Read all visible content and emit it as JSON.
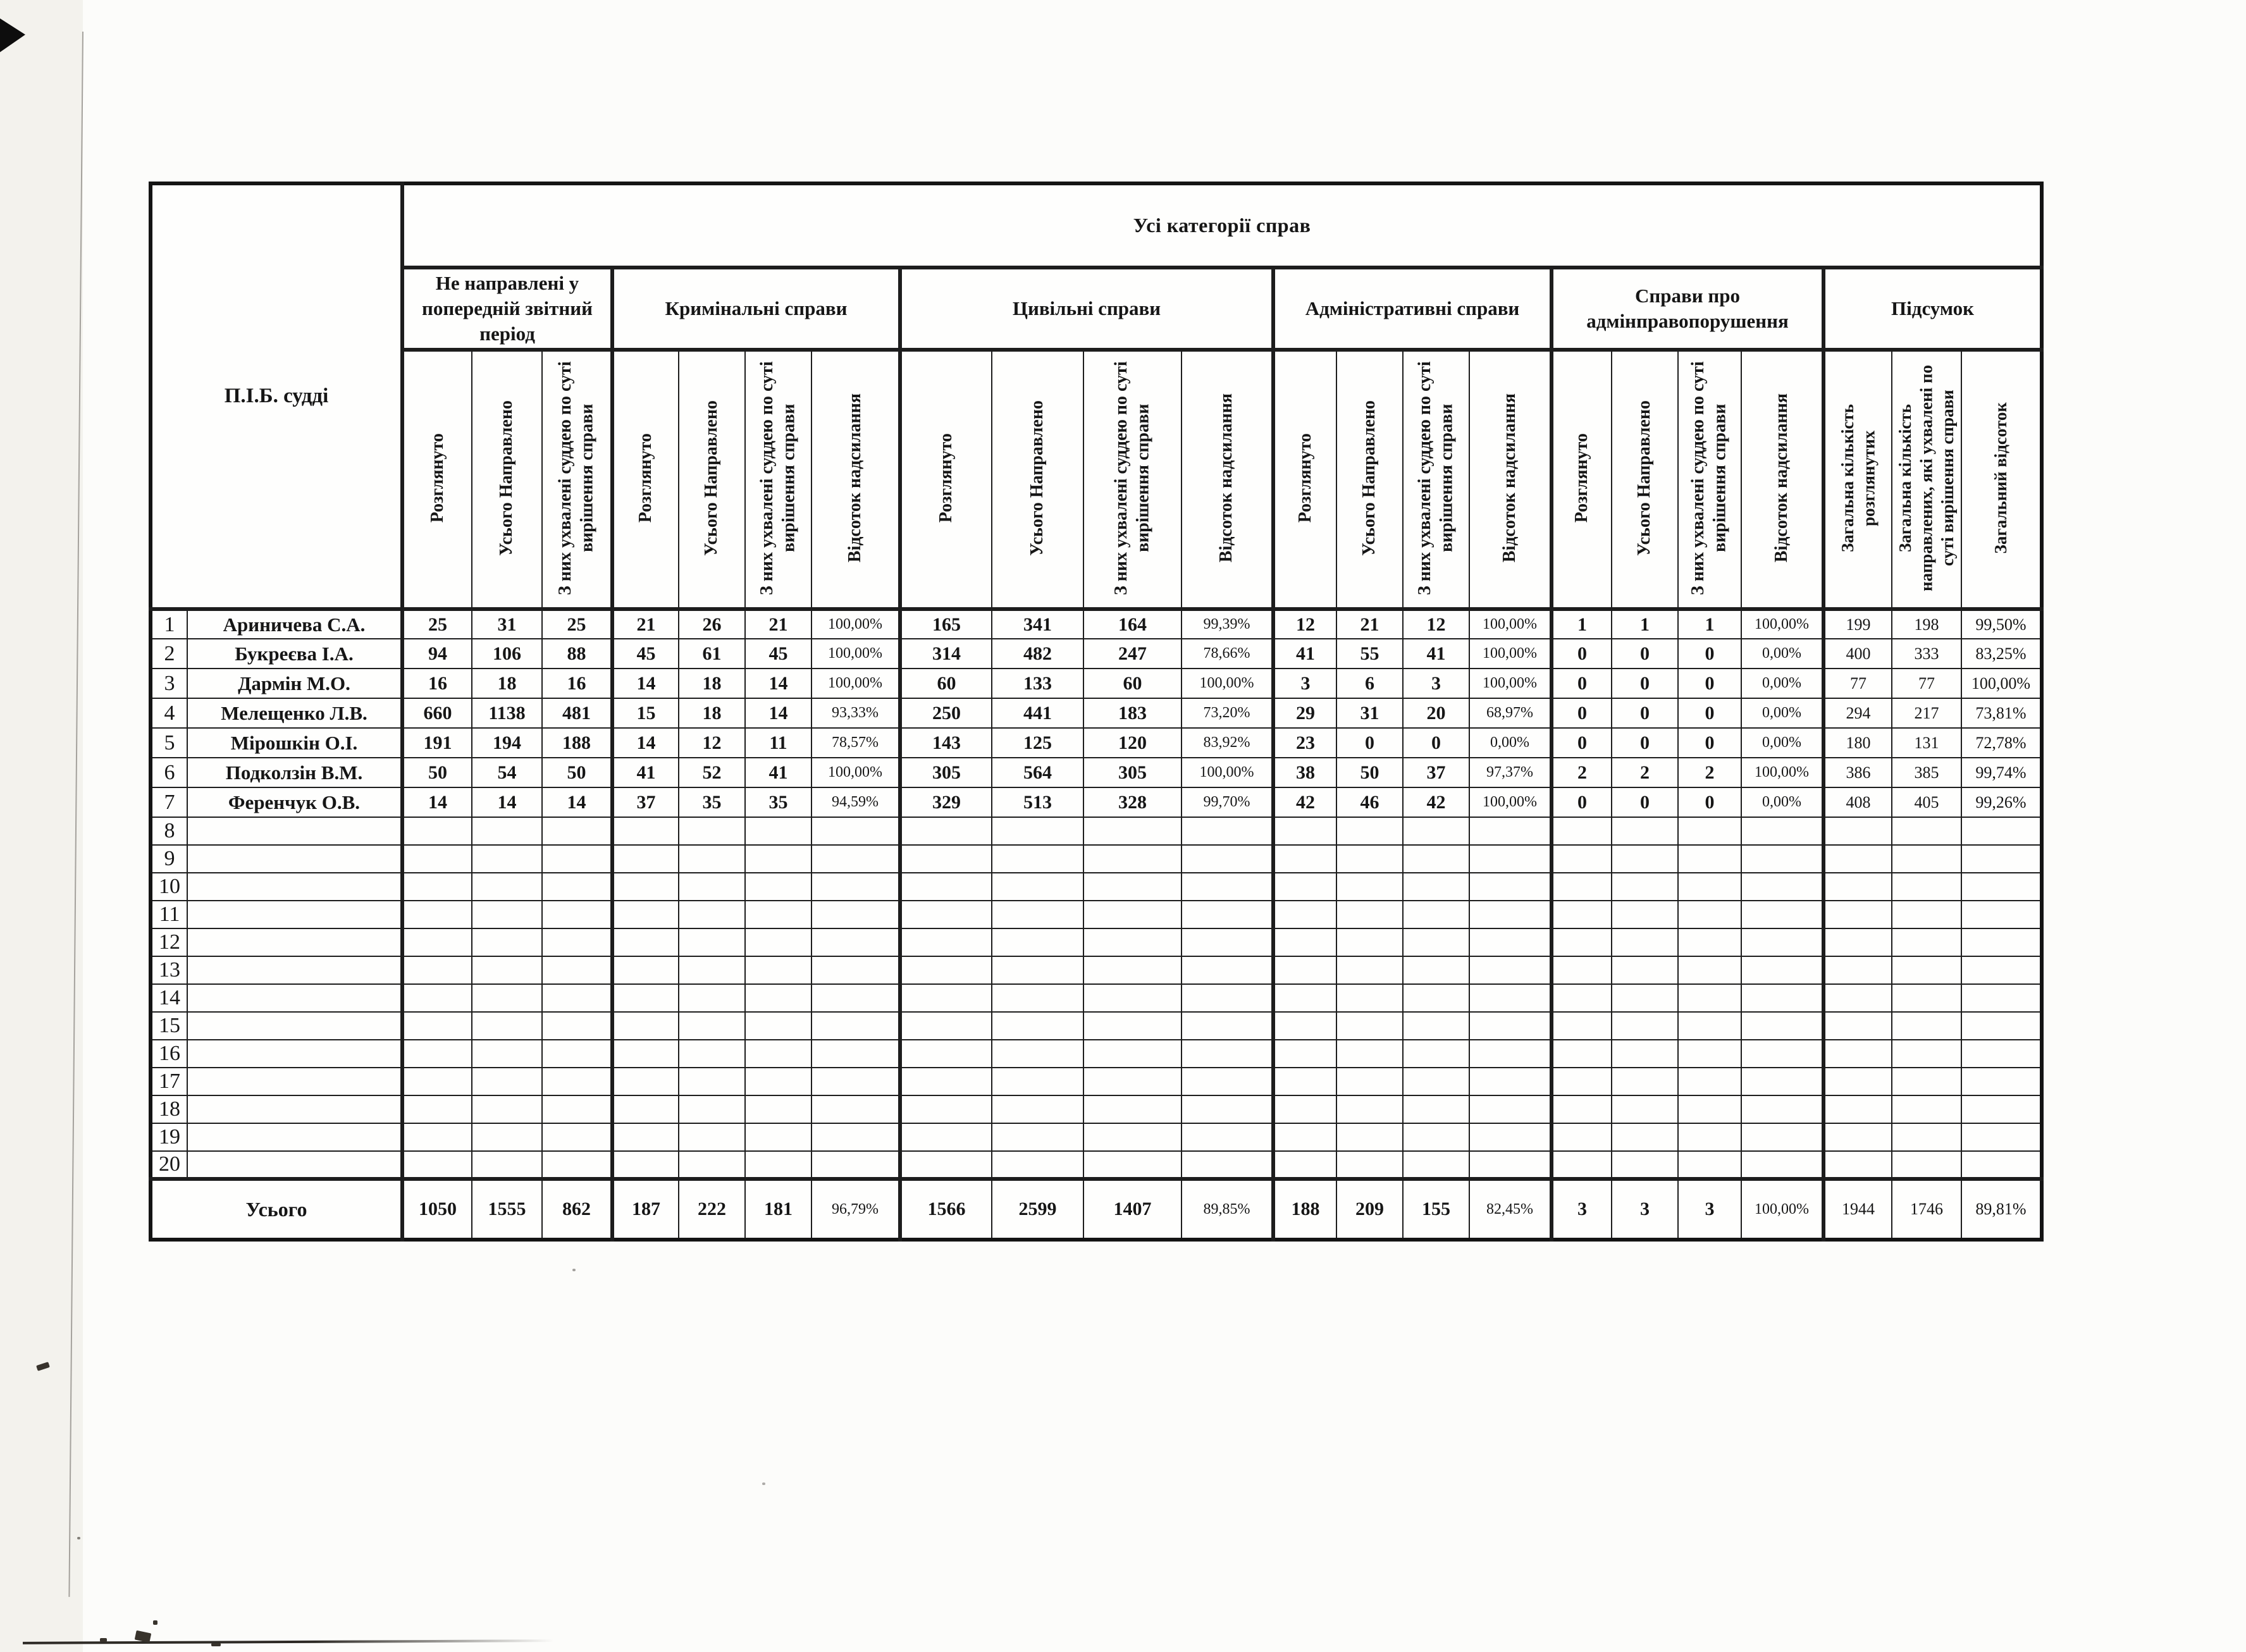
{
  "document": {
    "corner_header": "П.І.Б. судді",
    "span_header": "Усі категорії справ",
    "total_label": "Усього",
    "groups": [
      {
        "label": "Не направлені у попередній звітний період",
        "columns": [
          "Розглянуто",
          "Усього Направлено",
          "З них ухвалені суддею по суті вирішення справи"
        ]
      },
      {
        "label": "Кримінальні справи",
        "columns": [
          "Розглянуто",
          "Усього Направлено",
          "З них ухвалені суддею по суті вирішення справи",
          "Відсоток надсилання"
        ]
      },
      {
        "label": "Цивільні справи",
        "columns": [
          "Розглянуто",
          "Усього Направлено",
          "З них ухвалені суддею по суті вирішення справи",
          "Відсоток надсилання"
        ]
      },
      {
        "label": "Адміністративні справи",
        "columns": [
          "Розглянуто",
          "Усього Направлено",
          "З них ухвалені суддею по суті вирішення справи",
          "Відсоток надсилання"
        ]
      },
      {
        "label": "Справи про адмінправопорушення",
        "columns": [
          "Розглянуто",
          "Усього Направлено",
          "З них ухвалені суддею по суті вирішення справи",
          "Відсоток надсилання"
        ]
      },
      {
        "label": "Підсумок",
        "columns": [
          "Загальна кількість розглянутих",
          "Загальна кількість направлених, які ухвалені по суті вирішення справи",
          "Загальний відсоток"
        ]
      }
    ],
    "judges": [
      {
        "num": "1",
        "name": "Ариничева С.А.",
        "values": [
          "25",
          "31",
          "25",
          "21",
          "26",
          "21",
          "100,00%",
          "165",
          "341",
          "164",
          "99,39%",
          "12",
          "21",
          "12",
          "100,00%",
          "1",
          "1",
          "1",
          "100,00%",
          "199",
          "198",
          "99,50%"
        ]
      },
      {
        "num": "2",
        "name": "Букреєва І.А.",
        "values": [
          "94",
          "106",
          "88",
          "45",
          "61",
          "45",
          "100,00%",
          "314",
          "482",
          "247",
          "78,66%",
          "41",
          "55",
          "41",
          "100,00%",
          "0",
          "0",
          "0",
          "0,00%",
          "400",
          "333",
          "83,25%"
        ]
      },
      {
        "num": "3",
        "name": "Дармін М.О.",
        "values": [
          "16",
          "18",
          "16",
          "14",
          "18",
          "14",
          "100,00%",
          "60",
          "133",
          "60",
          "100,00%",
          "3",
          "6",
          "3",
          "100,00%",
          "0",
          "0",
          "0",
          "0,00%",
          "77",
          "77",
          "100,00%"
        ]
      },
      {
        "num": "4",
        "name": "Мелещенко Л.В.",
        "values": [
          "660",
          "1138",
          "481",
          "15",
          "18",
          "14",
          "93,33%",
          "250",
          "441",
          "183",
          "73,20%",
          "29",
          "31",
          "20",
          "68,97%",
          "0",
          "0",
          "0",
          "0,00%",
          "294",
          "217",
          "73,81%"
        ]
      },
      {
        "num": "5",
        "name": "Мірошкін О.І.",
        "values": [
          "191",
          "194",
          "188",
          "14",
          "12",
          "11",
          "78,57%",
          "143",
          "125",
          "120",
          "83,92%",
          "23",
          "0",
          "0",
          "0,00%",
          "0",
          "0",
          "0",
          "0,00%",
          "180",
          "131",
          "72,78%"
        ]
      },
      {
        "num": "6",
        "name": "Подколзін В.М.",
        "values": [
          "50",
          "54",
          "50",
          "41",
          "52",
          "41",
          "100,00%",
          "305",
          "564",
          "305",
          "100,00%",
          "38",
          "50",
          "37",
          "97,37%",
          "2",
          "2",
          "2",
          "100,00%",
          "386",
          "385",
          "99,74%"
        ]
      },
      {
        "num": "7",
        "name": "Ференчук О.В.",
        "values": [
          "14",
          "14",
          "14",
          "37",
          "35",
          "35",
          "94,59%",
          "329",
          "513",
          "328",
          "99,70%",
          "42",
          "46",
          "42",
          "100,00%",
          "0",
          "0",
          "0",
          "0,00%",
          "408",
          "405",
          "99,26%"
        ]
      }
    ],
    "empty_rows": [
      "8",
      "9",
      "10",
      "11",
      "12",
      "13",
      "14",
      "15",
      "16",
      "17",
      "18",
      "19",
      "20"
    ],
    "totals": [
      "1050",
      "1555",
      "862",
      "187",
      "222",
      "181",
      "96,79%",
      "1566",
      "2599",
      "1407",
      "89,85%",
      "188",
      "209",
      "155",
      "82,45%",
      "3",
      "3",
      "3",
      "100,00%",
      "1944",
      "1746",
      "89,81%"
    ]
  }
}
